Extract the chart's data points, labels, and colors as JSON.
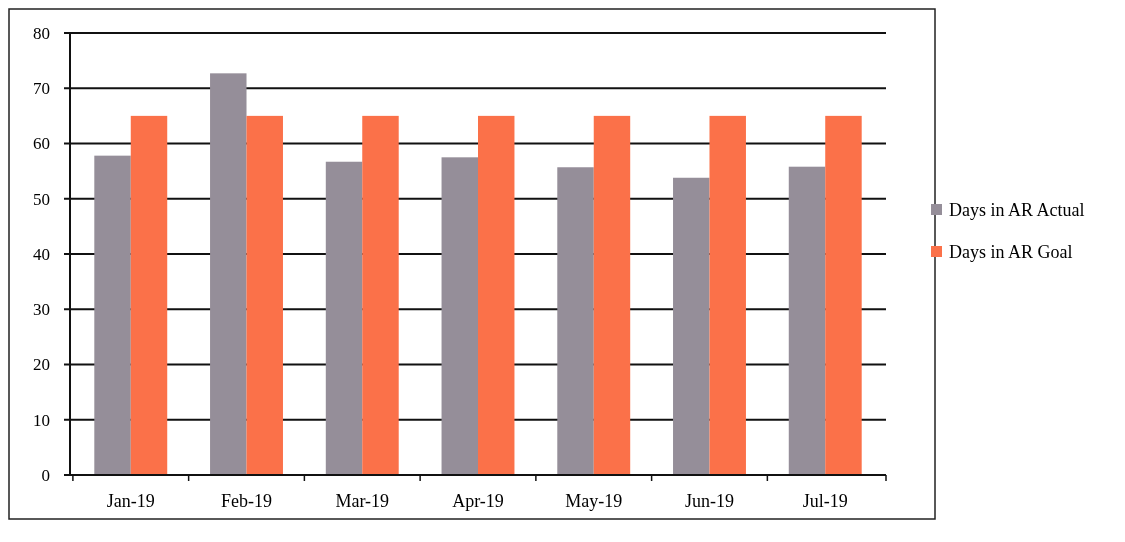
{
  "chart_data": {
    "type": "bar",
    "categories": [
      "Jan-19",
      "Feb-19",
      "Mar-19",
      "Apr-19",
      "May-19",
      "Jun-19",
      "Jul-19"
    ],
    "series": [
      {
        "name": "Days in AR Actual",
        "color": "#958e99",
        "values": [
          57.8,
          72.7,
          56.7,
          57.5,
          55.7,
          53.8,
          55.8
        ]
      },
      {
        "name": "Days in AR Goal",
        "color": "#fb7149",
        "values": [
          65,
          65,
          65,
          65,
          65,
          65,
          65
        ]
      }
    ],
    "ylim": [
      0,
      80
    ],
    "yticks": [
      0,
      10,
      20,
      30,
      40,
      50,
      60,
      70,
      80
    ],
    "grid": "y",
    "legend": "right"
  }
}
